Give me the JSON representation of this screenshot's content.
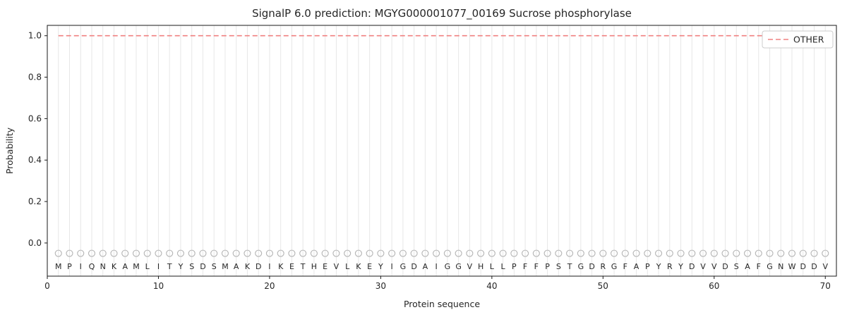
{
  "title": "SignalP 6.0 prediction: MGYG000001077_00169 Sucrose phosphorylase",
  "legend": {
    "entries": [
      {
        "label": "OTHER",
        "color": "#f08080",
        "dash": true
      }
    ]
  },
  "chart_data": {
    "type": "line",
    "title": "SignalP 6.0 prediction: MGYG000001077_00169 Sucrose phosphorylase",
    "xlabel": "Protein sequence",
    "ylabel": "Probability",
    "xlim": [
      0,
      71
    ],
    "ylim": [
      -0.16,
      1.05
    ],
    "xticks": [
      0,
      10,
      20,
      30,
      40,
      50,
      60,
      70
    ],
    "yticks": [
      "0.0",
      "0.2",
      "0.4",
      "0.6",
      "0.8",
      "1.0"
    ],
    "grid": "vertical line at every residue position, light gray",
    "legend_position": "upper right",
    "sequence": "MPIQNKAMLITYSDSMAKDIKETHEVLKEYIGDAIGGVHLLPFFPSTGDRGFAPYRYDVVDSAFGNWDDV",
    "marker_y": -0.05,
    "letter_y": -0.112,
    "series": [
      {
        "name": "OTHER",
        "style": "dashed",
        "color": "#f08080",
        "y_constant": 1.0,
        "x_start": 1,
        "x_end": 70.6
      }
    ],
    "colors": {
      "grid": "#e7e7e7",
      "marker": "#b5b5b5",
      "spine": "#1a1a1a",
      "letters": "#262626"
    }
  }
}
